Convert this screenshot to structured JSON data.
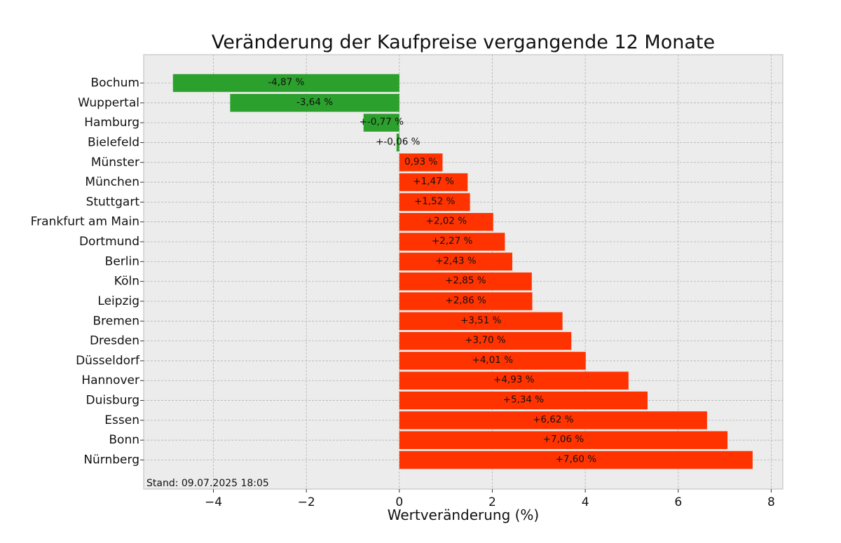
{
  "chart_data": {
    "type": "bar",
    "orientation": "horizontal",
    "title": "Veränderung der Kaufpreise vergangende 12 Monate",
    "xlabel": "Wertveränderung (%)",
    "ylabel": "",
    "xlim": [
      -5.5,
      8.25
    ],
    "xticks": [
      -4,
      -2,
      0,
      2,
      4,
      6,
      8
    ],
    "xtick_labels": [
      "−4",
      "−2",
      "0",
      "2",
      "4",
      "6",
      "8"
    ],
    "grid": true,
    "colors": {
      "negative": "#2ca02c",
      "positive": "#ff3300",
      "background": "#ececec"
    },
    "footnote": "Stand: 09.07.2025 18:05",
    "categories": [
      "Bochum",
      "Wuppertal",
      "Hamburg",
      "Bielefeld",
      "Münster",
      "München",
      "Stuttgart",
      "Frankfurt am Main",
      "Dortmund",
      "Berlin",
      "Köln",
      "Leipzig",
      "Bremen",
      "Dresden",
      "Düsseldorf",
      "Hannover",
      "Duisburg",
      "Essen",
      "Bonn",
      "Nürnberg"
    ],
    "values": [
      -4.87,
      -3.64,
      -0.77,
      -0.06,
      0.93,
      1.47,
      1.52,
      2.02,
      2.27,
      2.43,
      2.85,
      2.86,
      3.51,
      3.7,
      4.01,
      4.93,
      5.34,
      6.62,
      7.06,
      7.6
    ],
    "data_labels": [
      "-4,87 %",
      "-3,64 %",
      "+-0,77 %",
      "+-0,06 %",
      "0,93 %",
      "+1,47 %",
      "+1,52 %",
      "+2,02 %",
      "+2,27 %",
      "+2,43 %",
      "+2,85 %",
      "+2,86 %",
      "+3,51 %",
      "+3,70 %",
      "+4,01 %",
      "+4,93 %",
      "+5,34 %",
      "+6,62 %",
      "+7,06 %",
      "+7,60 %"
    ]
  }
}
